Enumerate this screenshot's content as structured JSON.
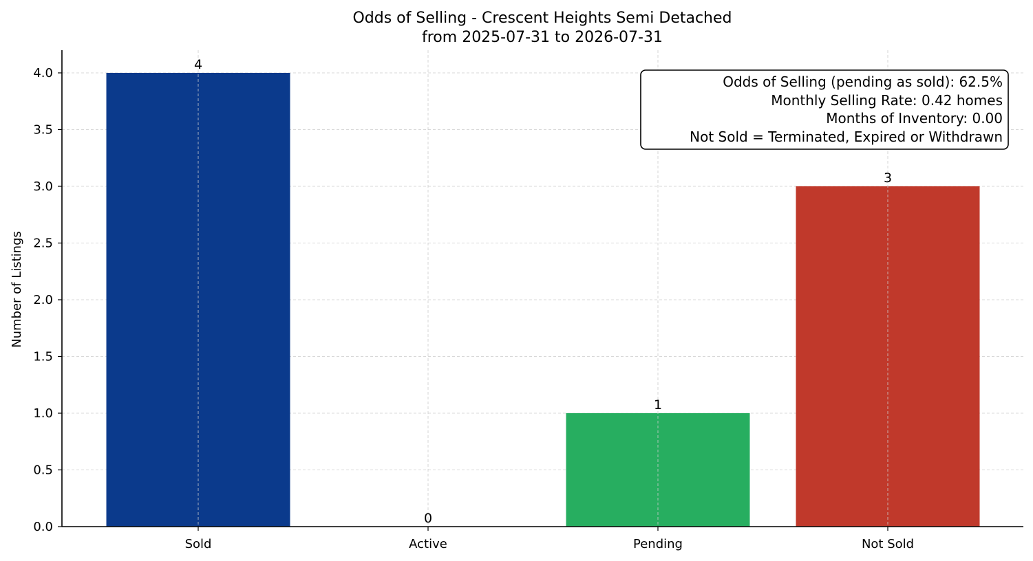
{
  "chart_data": {
    "type": "bar",
    "title": "Odds of Selling - Crescent Heights Semi Detached",
    "subtitle": "from 2025-07-31 to 2026-07-31",
    "xlabel": "",
    "ylabel": "Number of Listings",
    "categories": [
      "Sold",
      "Active",
      "Pending",
      "Not Sold"
    ],
    "values": [
      4,
      0,
      1,
      3
    ],
    "data_labels": [
      "4",
      "0",
      "1",
      "3"
    ],
    "colors": [
      "#0b3a8c",
      "#27ae60",
      "#27ae60",
      "#c0392b"
    ],
    "ylim": [
      0,
      4.2
    ],
    "yticks": [
      0.0,
      0.5,
      1.0,
      1.5,
      2.0,
      2.5,
      3.0,
      3.5,
      4.0
    ],
    "ytick_labels": [
      "0.0",
      "0.5",
      "1.0",
      "1.5",
      "2.0",
      "2.5",
      "3.0",
      "3.5",
      "4.0"
    ],
    "grid": true,
    "annotation": {
      "placement": "top-right",
      "lines": [
        "Odds of Selling (pending as sold): 62.5%",
        "Monthly Selling Rate: 0.42 homes",
        "Months of Inventory: 0.00",
        "Not Sold = Terminated, Expired or Withdrawn"
      ]
    }
  }
}
